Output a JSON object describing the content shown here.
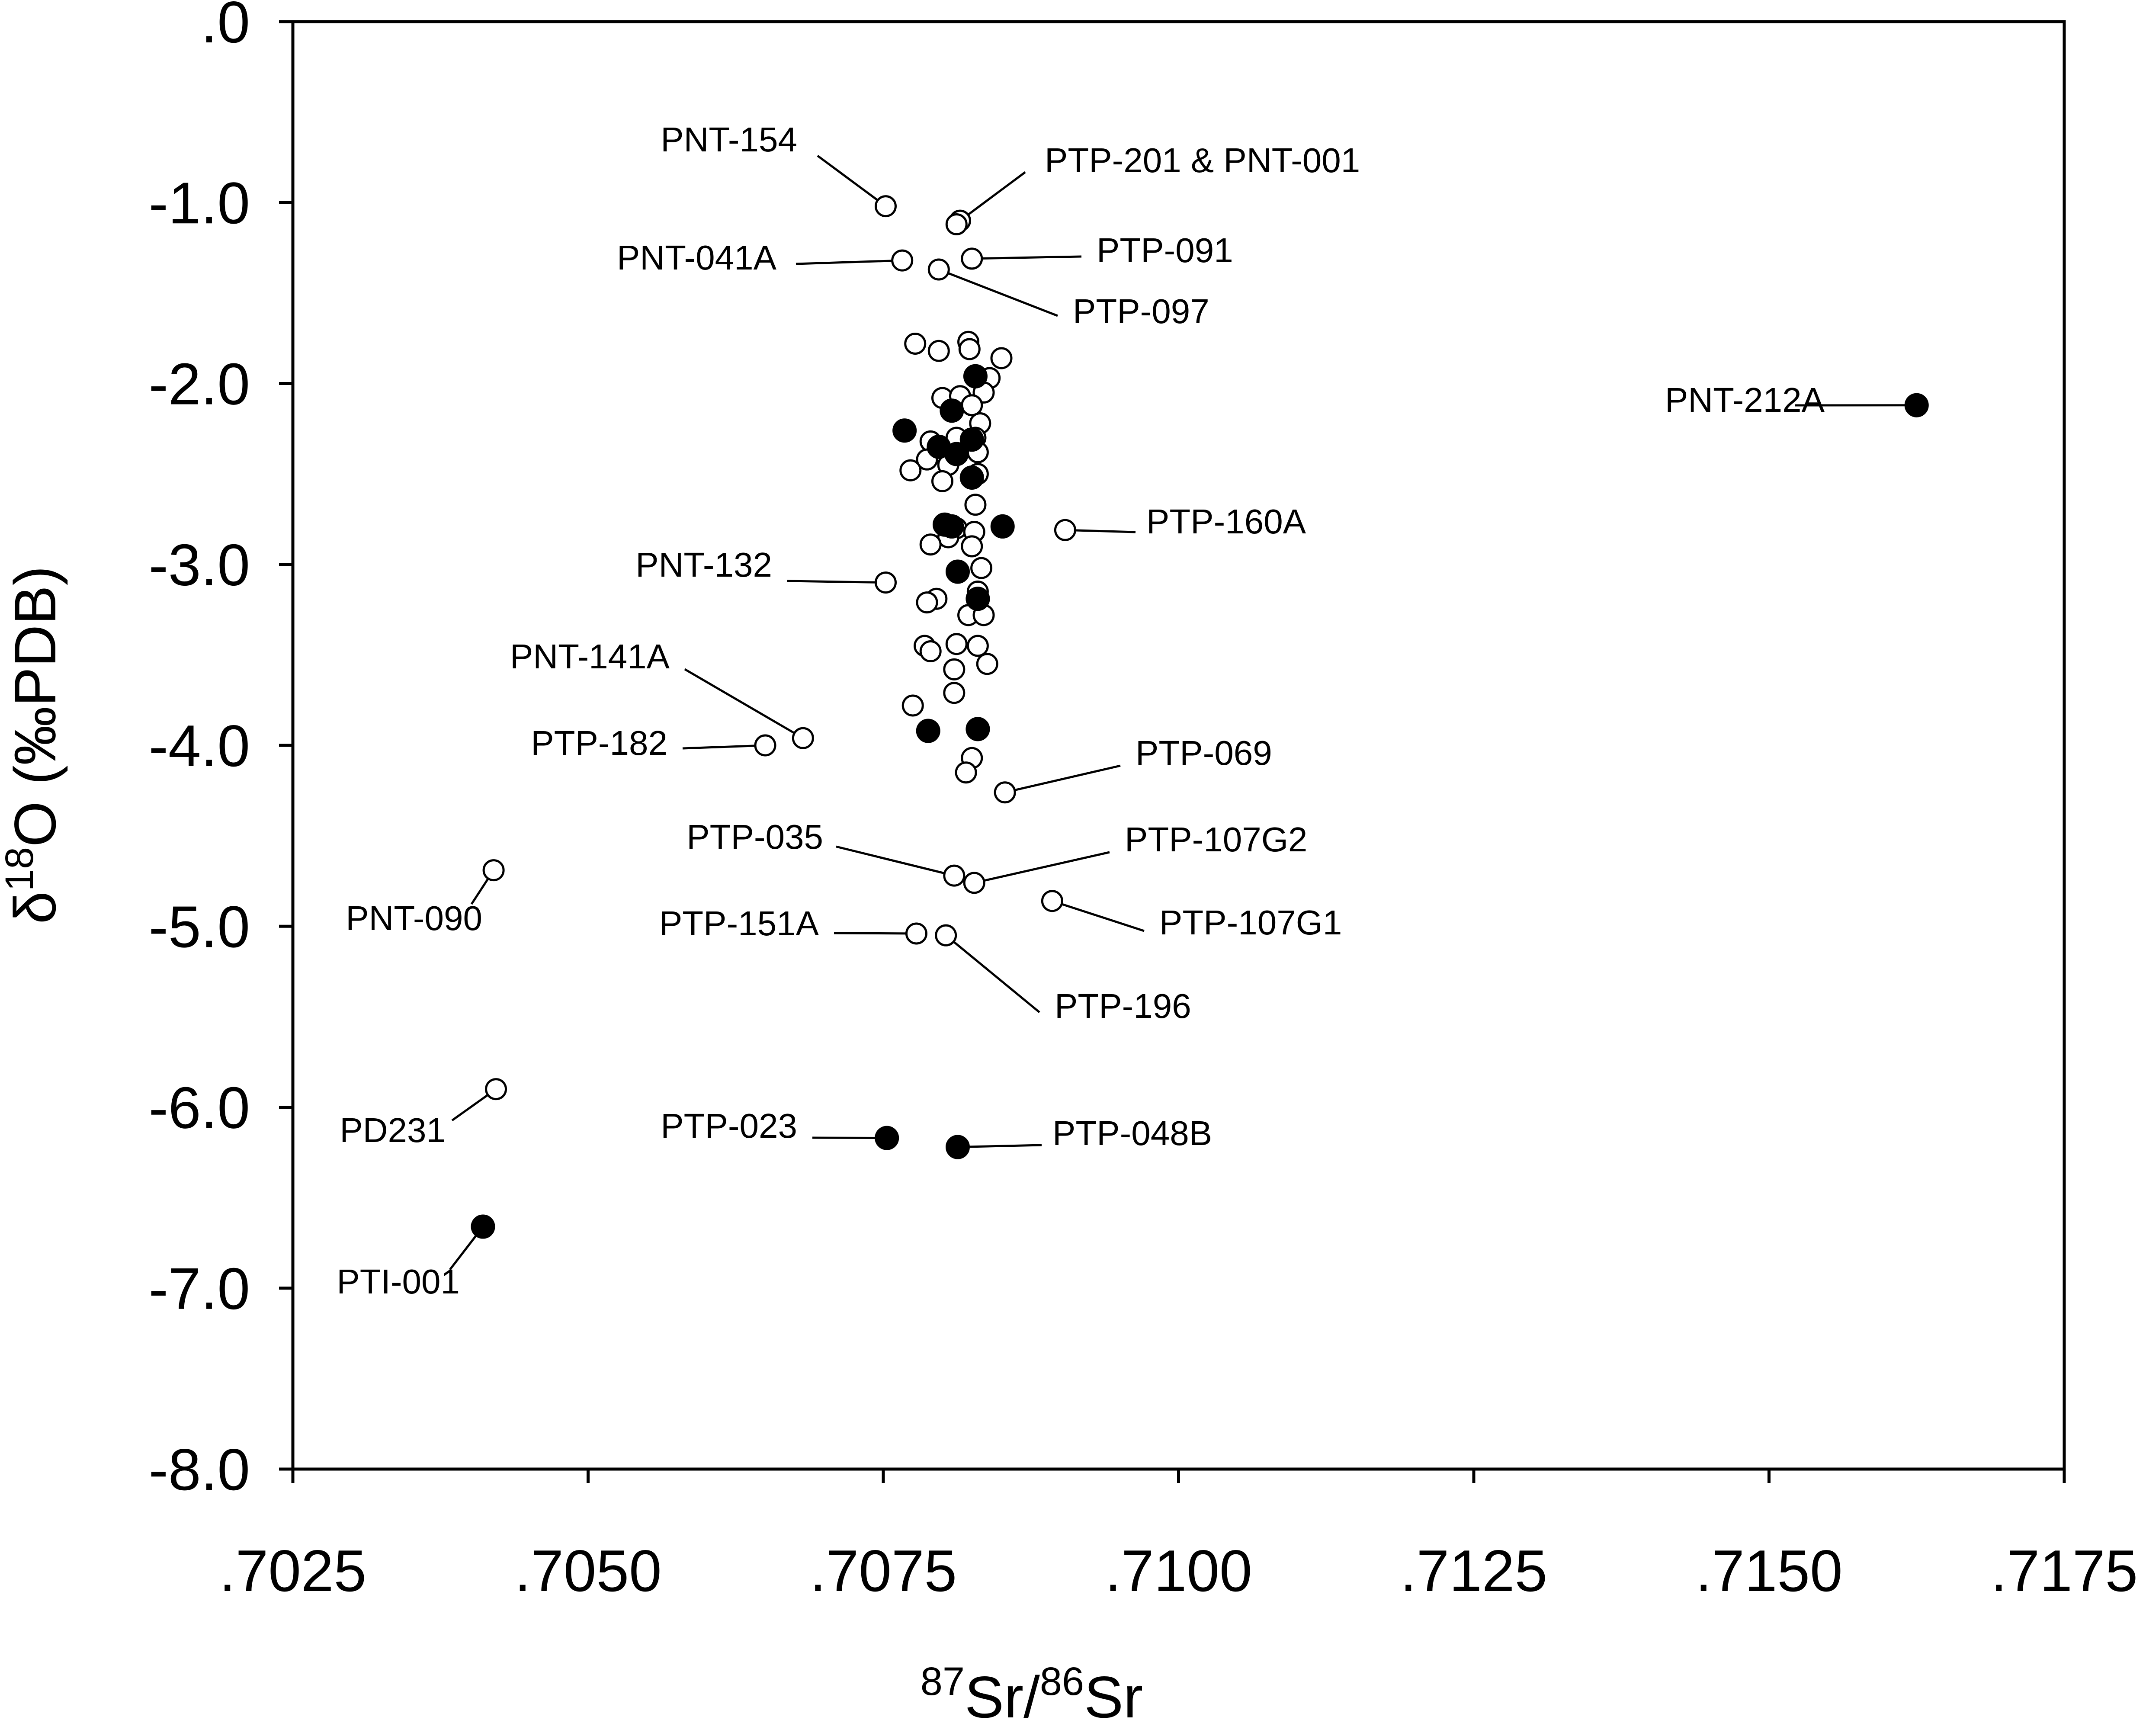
{
  "chart_data": {
    "type": "scatter",
    "xlabel": {
      "sup1": "87",
      "main1": "Sr/",
      "sup2": "86",
      "main2": "Sr"
    },
    "ylabel": {
      "pre": "δ",
      "sup": "18",
      "post": "O (‰PDB)"
    },
    "xlim": [
      0.7025,
      0.7175
    ],
    "ylim": [
      -8.0,
      0.0
    ],
    "x_ticks": [
      0.7025,
      0.705,
      0.7075,
      0.71,
      0.7125,
      0.715,
      0.7175
    ],
    "x_tick_labels": [
      ".7025",
      ".7050",
      ".7075",
      ".7100",
      ".7125",
      ".7150",
      ".7175"
    ],
    "y_ticks": [
      0.0,
      -1.0,
      -2.0,
      -3.0,
      -4.0,
      -5.0,
      -6.0,
      -7.0,
      -8.0
    ],
    "y_tick_labels": [
      ".0",
      "-1.0",
      "-2.0",
      "-3.0",
      "-4.0",
      "-5.0",
      "-6.0",
      "-7.0",
      "-8.0"
    ],
    "grid": false,
    "series": [
      {
        "marker": "open-circle",
        "points": [
          {
            "x": 0.70752,
            "y": -1.02,
            "label": "PNT-154"
          },
          {
            "x": 0.70815,
            "y": -1.1,
            "label": "PTP-201 & PNT-001"
          },
          {
            "x": 0.70812,
            "y": -1.12
          },
          {
            "x": 0.70766,
            "y": -1.32,
            "label": "PNT-041A"
          },
          {
            "x": 0.70825,
            "y": -1.31,
            "label": "PTP-091"
          },
          {
            "x": 0.70797,
            "y": -1.37,
            "label": "PTP-097"
          },
          {
            "x": 0.70777,
            "y": -1.78
          },
          {
            "x": 0.70797,
            "y": -1.82
          },
          {
            "x": 0.70822,
            "y": -1.77
          },
          {
            "x": 0.70823,
            "y": -1.81
          },
          {
            "x": 0.7085,
            "y": -1.86
          },
          {
            "x": 0.7084,
            "y": -1.97
          },
          {
            "x": 0.708,
            "y": -2.08
          },
          {
            "x": 0.70815,
            "y": -2.07
          },
          {
            "x": 0.70835,
            "y": -2.05
          },
          {
            "x": 0.70825,
            "y": -2.12
          },
          {
            "x": 0.70832,
            "y": -2.22
          },
          {
            "x": 0.7079,
            "y": -2.32
          },
          {
            "x": 0.70812,
            "y": -2.3
          },
          {
            "x": 0.70828,
            "y": -2.3
          },
          {
            "x": 0.70787,
            "y": -2.42
          },
          {
            "x": 0.70805,
            "y": -2.45
          },
          {
            "x": 0.7083,
            "y": -2.38
          },
          {
            "x": 0.70773,
            "y": -2.48
          },
          {
            "x": 0.708,
            "y": -2.54
          },
          {
            "x": 0.7083,
            "y": -2.5
          },
          {
            "x": 0.70828,
            "y": -2.67
          },
          {
            "x": 0.70812,
            "y": -2.8
          },
          {
            "x": 0.70827,
            "y": -2.82
          },
          {
            "x": 0.70805,
            "y": -2.85
          },
          {
            "x": 0.7079,
            "y": -2.89
          },
          {
            "x": 0.70825,
            "y": -2.9
          },
          {
            "x": 0.70833,
            "y": -3.02
          },
          {
            "x": 0.7083,
            "y": -3.15
          },
          {
            "x": 0.70795,
            "y": -3.19
          },
          {
            "x": 0.70787,
            "y": -3.21
          },
          {
            "x": 0.70822,
            "y": -3.28
          },
          {
            "x": 0.70835,
            "y": -3.28
          },
          {
            "x": 0.7083,
            "y": -3.45
          },
          {
            "x": 0.70812,
            "y": -3.44
          },
          {
            "x": 0.70785,
            "y": -3.45
          },
          {
            "x": 0.7079,
            "y": -3.48
          },
          {
            "x": 0.70838,
            "y": -3.55
          },
          {
            "x": 0.7081,
            "y": -3.58
          },
          {
            "x": 0.7081,
            "y": -3.71
          },
          {
            "x": 0.70775,
            "y": -3.78
          },
          {
            "x": 0.70825,
            "y": -4.07
          },
          {
            "x": 0.7082,
            "y": -4.15
          },
          {
            "x": 0.70752,
            "y": -3.1,
            "label": "PNT-132"
          },
          {
            "x": 0.70904,
            "y": -2.81,
            "label": "PTP-160A"
          },
          {
            "x": 0.70682,
            "y": -3.96,
            "label": "PNT-141A"
          },
          {
            "x": 0.7065,
            "y": -4.0,
            "label": "PTP-182"
          },
          {
            "x": 0.70853,
            "y": -4.26,
            "label": "PTP-069"
          },
          {
            "x": 0.7081,
            "y": -4.72,
            "label": "PTP-035"
          },
          {
            "x": 0.70827,
            "y": -4.76,
            "label": "PTP-107G2"
          },
          {
            "x": 0.70893,
            "y": -4.86,
            "label": "PTP-107G1"
          },
          {
            "x": 0.70778,
            "y": -5.04,
            "label": "PTP-151A"
          },
          {
            "x": 0.70803,
            "y": -5.05,
            "label": "PTP-196"
          },
          {
            "x": 0.7042,
            "y": -4.69,
            "label": "PNT-090"
          },
          {
            "x": 0.70422,
            "y": -5.9,
            "label": "PD231"
          }
        ]
      },
      {
        "marker": "filled-circle",
        "points": [
          {
            "x": 0.70828,
            "y": -1.96
          },
          {
            "x": 0.70808,
            "y": -2.15
          },
          {
            "x": 0.70768,
            "y": -2.26
          },
          {
            "x": 0.70797,
            "y": -2.35
          },
          {
            "x": 0.70812,
            "y": -2.39
          },
          {
            "x": 0.70825,
            "y": -2.31
          },
          {
            "x": 0.70825,
            "y": -2.52
          },
          {
            "x": 0.70802,
            "y": -2.78
          },
          {
            "x": 0.70808,
            "y": -2.79
          },
          {
            "x": 0.70851,
            "y": -2.79
          },
          {
            "x": 0.70813,
            "y": -3.04
          },
          {
            "x": 0.7083,
            "y": -3.19
          },
          {
            "x": 0.70788,
            "y": -3.92
          },
          {
            "x": 0.7083,
            "y": -3.91
          },
          {
            "x": 0.71625,
            "y": -2.12,
            "label": "PNT-212A"
          },
          {
            "x": 0.70753,
            "y": -6.17,
            "label": "PTP-023"
          },
          {
            "x": 0.70813,
            "y": -6.22,
            "label": "PTP-048B"
          },
          {
            "x": 0.70411,
            "y": -6.66,
            "label": "PTI-001"
          }
        ]
      }
    ]
  }
}
